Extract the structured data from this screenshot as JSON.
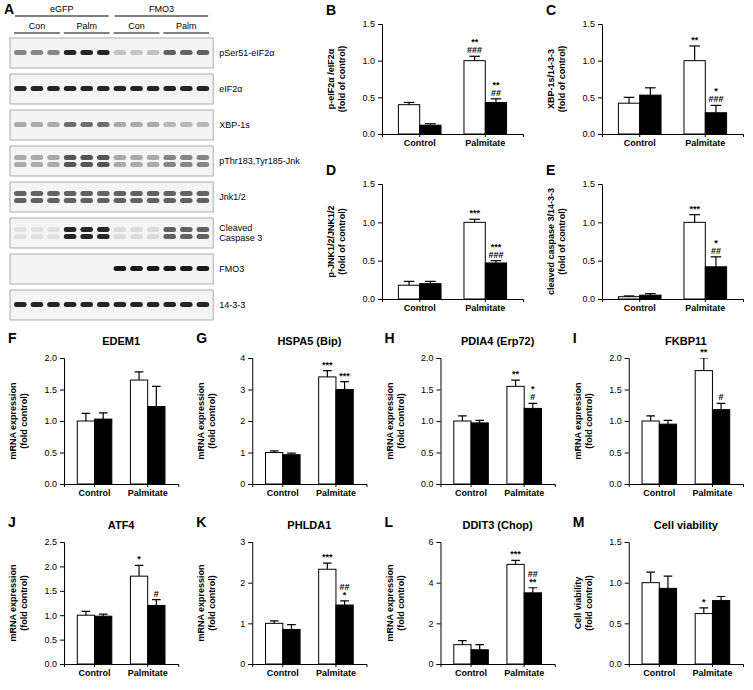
{
  "blot": {
    "panel": "A",
    "groups": [
      "eGFP",
      "FMO3"
    ],
    "conditions": [
      "Con",
      "Palm",
      "Con",
      "Palm"
    ],
    "rows": [
      [
        "pSer51-eIF2α"
      ],
      [
        "eIF2α"
      ],
      [
        "XBP-1s"
      ],
      [
        "pThr183,Tyr185-Jnk"
      ],
      [
        "Jnk1/2"
      ],
      [
        "Cleaved",
        "Caspase 3"
      ],
      [
        "FMO3"
      ],
      [
        "14-3-3"
      ]
    ]
  },
  "chart_data": [
    {
      "type": "bar",
      "panel": "B",
      "ylabel": [
        "p-eIF2α /eIF2α",
        "(fold of control)"
      ],
      "categories": [
        "Control",
        "Palmitate"
      ],
      "ylim": [
        0,
        1.5
      ],
      "yticks": [
        {
          "value": 0,
          "label": "0.0"
        },
        {
          "value": 0.5,
          "label": "0.5"
        },
        {
          "value": 1,
          "label": "1.0"
        },
        {
          "value": 1.5,
          "label": "1.5"
        }
      ],
      "series": [
        {
          "color": "#ffffff",
          "values": [
            0.4,
            1.0
          ],
          "errors": [
            0.03,
            0.06
          ],
          "annotations": [
            null,
            [
              "**",
              "###"
            ]
          ]
        },
        {
          "color": "#000000",
          "values": [
            0.12,
            0.43
          ],
          "errors": [
            0.02,
            0.05
          ],
          "annotations": [
            null,
            [
              "**",
              "##"
            ]
          ]
        }
      ]
    },
    {
      "type": "bar",
      "panel": "C",
      "ylabel": [
        "XBP-1s/14-3-3",
        "(fold of control)"
      ],
      "categories": [
        "Control",
        "Palmitate"
      ],
      "ylim": [
        0,
        1.5
      ],
      "yticks": [
        {
          "value": 0,
          "label": "0.0"
        },
        {
          "value": 0.5,
          "label": "0.5"
        },
        {
          "value": 1,
          "label": "1.0"
        },
        {
          "value": 1.5,
          "label": "1.5"
        }
      ],
      "series": [
        {
          "color": "#ffffff",
          "values": [
            0.42,
            1.0
          ],
          "errors": [
            0.08,
            0.2
          ],
          "annotations": [
            null,
            [
              "**"
            ]
          ]
        },
        {
          "color": "#000000",
          "values": [
            0.53,
            0.29
          ],
          "errors": [
            0.1,
            0.1
          ],
          "annotations": [
            null,
            [
              "*",
              "###"
            ]
          ]
        }
      ]
    },
    {
      "type": "bar",
      "panel": "D",
      "ylabel": [
        "p-JNK1/2/JNK1/2",
        "(fold of control)"
      ],
      "categories": [
        "Control",
        "Palmitate"
      ],
      "ylim": [
        0,
        1.5
      ],
      "yticks": [
        {
          "value": 0,
          "label": "0.0"
        },
        {
          "value": 0.5,
          "label": "0.5"
        },
        {
          "value": 1,
          "label": "1.0"
        },
        {
          "value": 1.5,
          "label": "1.5"
        }
      ],
      "series": [
        {
          "color": "#ffffff",
          "values": [
            0.18,
            1.0
          ],
          "errors": [
            0.05,
            0.04
          ],
          "annotations": [
            null,
            [
              "***"
            ]
          ]
        },
        {
          "color": "#000000",
          "values": [
            0.2,
            0.47
          ],
          "errors": [
            0.03,
            0.03
          ],
          "annotations": [
            null,
            [
              "***",
              "###"
            ]
          ]
        }
      ]
    },
    {
      "type": "bar",
      "panel": "E",
      "ylabel": [
        "cleaved caspase 3/14-3-3",
        "(fold of control)"
      ],
      "categories": [
        "Control",
        "Palmitate"
      ],
      "ylim": [
        0,
        1.5
      ],
      "yticks": [
        {
          "value": 0,
          "label": "0.0"
        },
        {
          "value": 0.5,
          "label": "0.5"
        },
        {
          "value": 1,
          "label": "1.0"
        },
        {
          "value": 1.5,
          "label": "1.5"
        }
      ],
      "series": [
        {
          "color": "#ffffff",
          "values": [
            0.03,
            1.0
          ],
          "errors": [
            0.01,
            0.1
          ],
          "annotations": [
            null,
            [
              "***"
            ]
          ]
        },
        {
          "color": "#000000",
          "values": [
            0.05,
            0.42
          ],
          "errors": [
            0.02,
            0.13
          ],
          "annotations": [
            null,
            [
              "*",
              "##"
            ]
          ]
        }
      ]
    },
    {
      "type": "bar",
      "panel": "F",
      "title": "EDEM1",
      "ylabel": [
        "mRNA expression",
        "(fold control)"
      ],
      "categories": [
        "Control",
        "Palmitate"
      ],
      "ylim": [
        0,
        2
      ],
      "yticks": [
        {
          "value": 0,
          "label": "0.0"
        },
        {
          "value": 0.5,
          "label": "0.5"
        },
        {
          "value": 1,
          "label": "1.0"
        },
        {
          "value": 1.5,
          "label": "1.5"
        },
        {
          "value": 2,
          "label": "2.0"
        }
      ],
      "series": [
        {
          "color": "#ffffff",
          "values": [
            1.0,
            1.65
          ],
          "errors": [
            0.12,
            0.13
          ],
          "annotations": [
            null,
            null
          ]
        },
        {
          "color": "#000000",
          "values": [
            1.03,
            1.23
          ],
          "errors": [
            0.1,
            0.32
          ],
          "annotations": [
            null,
            null
          ]
        }
      ]
    },
    {
      "type": "bar",
      "panel": "G",
      "title": "HSPA5 (Bip)",
      "ylabel": [
        "mRNA expression",
        "(fold control)"
      ],
      "categories": [
        "Control",
        "Palmitate"
      ],
      "ylim": [
        0,
        4
      ],
      "yticks": [
        0,
        1,
        2,
        3,
        4
      ],
      "series": [
        {
          "color": "#ffffff",
          "values": [
            1.0,
            3.4
          ],
          "errors": [
            0.05,
            0.2
          ],
          "annotations": [
            null,
            [
              "***"
            ]
          ]
        },
        {
          "color": "#000000",
          "values": [
            0.93,
            3.0
          ],
          "errors": [
            0.05,
            0.25
          ],
          "annotations": [
            null,
            [
              "***"
            ]
          ]
        }
      ]
    },
    {
      "type": "bar",
      "panel": "H",
      "title": "PDIA4 (Erp72)",
      "ylabel": [
        "mRNA expression",
        "(fold control)"
      ],
      "categories": [
        "Control",
        "Palmitate"
      ],
      "ylim": [
        0,
        2
      ],
      "yticks": [
        {
          "value": 0,
          "label": "0.0"
        },
        {
          "value": 0.5,
          "label": "0.5"
        },
        {
          "value": 1,
          "label": "1.0"
        },
        {
          "value": 1.5,
          "label": "1.5"
        },
        {
          "value": 2,
          "label": "2.0"
        }
      ],
      "series": [
        {
          "color": "#ffffff",
          "values": [
            1.0,
            1.55
          ],
          "errors": [
            0.08,
            0.1
          ],
          "annotations": [
            null,
            [
              "**"
            ]
          ]
        },
        {
          "color": "#000000",
          "values": [
            0.97,
            1.2
          ],
          "errors": [
            0.04,
            0.08
          ],
          "annotations": [
            null,
            [
              "*",
              "#"
            ]
          ]
        }
      ]
    },
    {
      "type": "bar",
      "panel": "I",
      "title": "FKBP11",
      "ylabel": [
        "mRNA expression",
        "(fold control)"
      ],
      "categories": [
        "Control",
        "Palmitate"
      ],
      "ylim": [
        0,
        2
      ],
      "yticks": [
        {
          "value": 0,
          "label": "0.0"
        },
        {
          "value": 0.5,
          "label": "0.5"
        },
        {
          "value": 1,
          "label": "1.0"
        },
        {
          "value": 1.5,
          "label": "1.5"
        },
        {
          "value": 2,
          "label": "2.0"
        }
      ],
      "series": [
        {
          "color": "#ffffff",
          "values": [
            1.0,
            1.8
          ],
          "errors": [
            0.08,
            0.2
          ],
          "annotations": [
            null,
            [
              "**"
            ]
          ]
        },
        {
          "color": "#000000",
          "values": [
            0.95,
            1.18
          ],
          "errors": [
            0.06,
            0.1
          ],
          "annotations": [
            null,
            [
              "#"
            ]
          ]
        }
      ]
    },
    {
      "type": "bar",
      "panel": "J",
      "title": "ATF4",
      "ylabel": [
        "mRNA expression",
        "(fold control)"
      ],
      "categories": [
        "Control",
        "Palmitate"
      ],
      "ylim": [
        0,
        2.5
      ],
      "yticks": [
        {
          "value": 0,
          "label": "0.0"
        },
        {
          "value": 0.5,
          "label": "0.5"
        },
        {
          "value": 1,
          "label": "1.0"
        },
        {
          "value": 1.5,
          "label": "1.5"
        },
        {
          "value": 2,
          "label": "2.0"
        },
        {
          "value": 2.5,
          "label": "2.5"
        }
      ],
      "series": [
        {
          "color": "#ffffff",
          "values": [
            1.0,
            1.8
          ],
          "errors": [
            0.08,
            0.22
          ],
          "annotations": [
            null,
            [
              "*"
            ]
          ]
        },
        {
          "color": "#000000",
          "values": [
            0.98,
            1.2
          ],
          "errors": [
            0.04,
            0.12
          ],
          "annotations": [
            null,
            [
              "#"
            ]
          ]
        }
      ]
    },
    {
      "type": "bar",
      "panel": "K",
      "title": "PHLDA1",
      "ylabel": [
        "mRNA expression",
        "(fold control)"
      ],
      "categories": [
        "Control",
        "Palmitate"
      ],
      "ylim": [
        0,
        3
      ],
      "yticks": [
        0,
        1,
        2,
        3
      ],
      "series": [
        {
          "color": "#ffffff",
          "values": [
            1.0,
            2.33
          ],
          "errors": [
            0.06,
            0.15
          ],
          "annotations": [
            null,
            [
              "***"
            ]
          ]
        },
        {
          "color": "#000000",
          "values": [
            0.85,
            1.45
          ],
          "errors": [
            0.12,
            0.1
          ],
          "annotations": [
            null,
            [
              "##",
              "*"
            ]
          ]
        }
      ]
    },
    {
      "type": "bar",
      "panel": "L",
      "title": "DDIT3 (Chop)",
      "ylabel": [
        "mRNA expression",
        "(fold control)"
      ],
      "categories": [
        "Control",
        "Palmitate"
      ],
      "ylim": [
        0,
        6
      ],
      "yticks": [
        0,
        2,
        4,
        6
      ],
      "series": [
        {
          "color": "#ffffff",
          "values": [
            0.95,
            4.9
          ],
          "errors": [
            0.2,
            0.2
          ],
          "annotations": [
            null,
            [
              "***"
            ]
          ]
        },
        {
          "color": "#000000",
          "values": [
            0.7,
            3.5
          ],
          "errors": [
            0.25,
            0.25
          ],
          "annotations": [
            null,
            [
              "##",
              "**"
            ]
          ]
        }
      ]
    },
    {
      "type": "bar",
      "panel": "M",
      "title": "Cell viability",
      "ylabel": [
        "Cell viability",
        "(fold control)"
      ],
      "categories": [
        "Control",
        "Palmitate"
      ],
      "ylim": [
        0,
        1.5
      ],
      "yticks": [
        {
          "value": 0,
          "label": "0.0"
        },
        {
          "value": 0.5,
          "label": "0.5"
        },
        {
          "value": 1,
          "label": "1.0"
        },
        {
          "value": 1.5,
          "label": "1.5"
        }
      ],
      "series": [
        {
          "color": "#ffffff",
          "values": [
            1.0,
            0.62
          ],
          "errors": [
            0.13,
            0.07
          ],
          "annotations": [
            null,
            [
              "*"
            ]
          ]
        },
        {
          "color": "#000000",
          "values": [
            0.93,
            0.78
          ],
          "errors": [
            0.15,
            0.05
          ],
          "annotations": [
            null,
            null
          ]
        }
      ]
    }
  ]
}
